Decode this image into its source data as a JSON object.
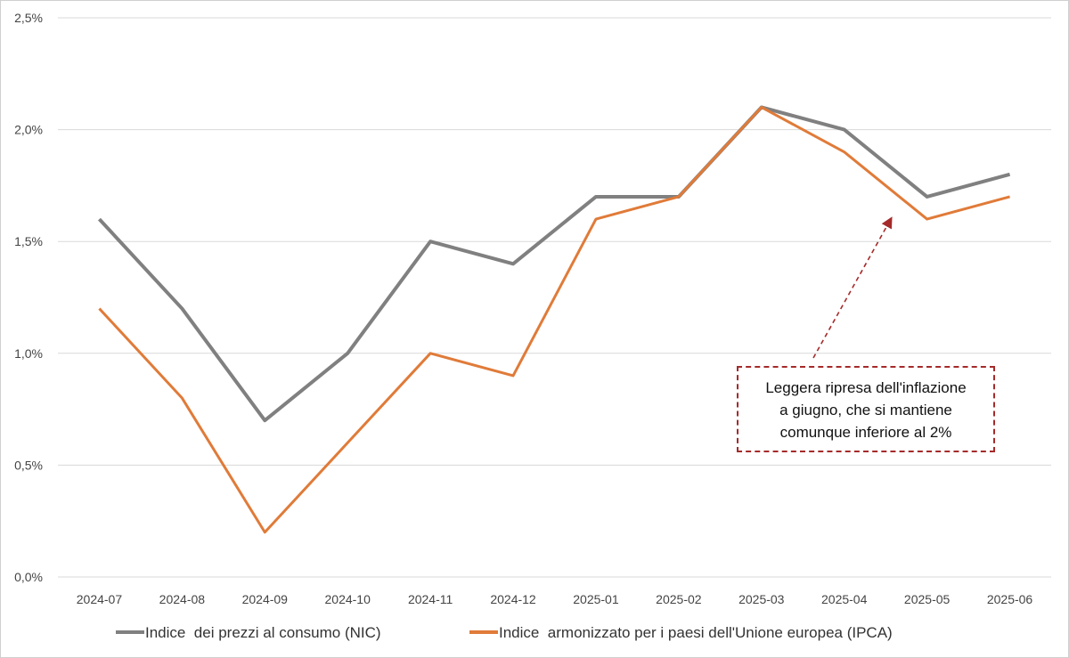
{
  "chart_data": {
    "type": "line",
    "categories": [
      "2024-07",
      "2024-08",
      "2024-09",
      "2024-10",
      "2024-11",
      "2024-12",
      "2025-01",
      "2025-02",
      "2025-03",
      "2025-04",
      "2025-05",
      "2025-06"
    ],
    "series": [
      {
        "name": "Indice  dei prezzi al consumo (NIC)",
        "color": "#808080",
        "values": [
          1.6,
          1.2,
          0.7,
          1.0,
          1.5,
          1.4,
          1.7,
          1.7,
          2.1,
          2.0,
          1.7,
          1.8
        ]
      },
      {
        "name": "Indice  armonizzato per i paesi dell'Unione europea (IPCA)",
        "color": "#e07b39",
        "values": [
          1.2,
          0.8,
          0.2,
          0.6,
          1.0,
          0.9,
          1.6,
          1.7,
          2.1,
          1.9,
          1.6,
          1.7
        ]
      }
    ],
    "yticks": [
      "0,0%",
      "0,5%",
      "1,0%",
      "1,5%",
      "2,0%",
      "2,5%"
    ],
    "ylim": [
      0,
      2.5
    ],
    "grid": true,
    "legend": "bottom",
    "annotation": {
      "text": "Leggera ripresa dell'inflazione\na giugno, che si mantiene\ncomunque inferiore al 2%",
      "color": "#a52a2a"
    }
  }
}
